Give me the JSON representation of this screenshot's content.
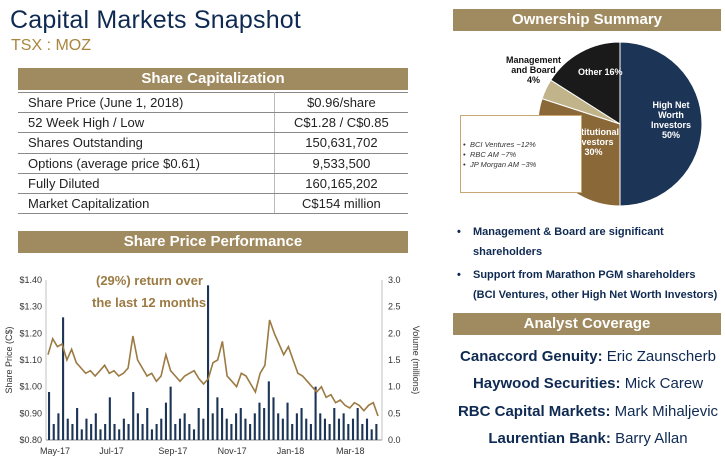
{
  "header": {
    "title": "Capital Markets Snapshot",
    "ticker": "TSX : MOZ"
  },
  "share_cap": {
    "heading": "Share Capitalization",
    "rows": [
      {
        "label": "Share Price (June 1, 2018)",
        "value": "$0.96/share"
      },
      {
        "label": "52 Week High / Low",
        "value": "C$1.28 / C$0.85"
      },
      {
        "label": "Shares Outstanding",
        "value": "150,631,702"
      },
      {
        "label": "Options (average price $0.61)",
        "value": "9,533,500"
      },
      {
        "label": "Fully Diluted",
        "value": "160,165,202"
      },
      {
        "label": "Market Capitalization",
        "value": "C$154 million"
      }
    ]
  },
  "performance": {
    "heading": "Share Price Performance",
    "note_line1": "(29%) return over",
    "note_line2": "the last 12 months"
  },
  "chart_data": {
    "type": "line",
    "xlabel": "",
    "ylabel": "Share Price (C$)",
    "y2label": "Volume (millions)",
    "x_ticks": [
      "May-17",
      "Jul-17",
      "Sep-17",
      "Nov-17",
      "Jan-18",
      "Mar-18"
    ],
    "y_ticks": [
      "$0.80",
      "$0.90",
      "$1.00",
      "$1.10",
      "$1.20",
      "$1.30",
      "$1.40"
    ],
    "y2_ticks": [
      "0.0",
      "0.5",
      "1.0",
      "1.5",
      "2.0",
      "2.5",
      "3.0"
    ],
    "ylim": [
      0.8,
      1.4
    ],
    "y2lim": [
      0,
      3.0
    ],
    "grid": false,
    "series": [
      {
        "values": [
          1.12,
          1.18,
          1.15,
          1.16,
          1.1,
          1.14,
          1.09,
          1.07,
          1.05,
          1.06,
          1.04,
          1.06,
          1.08,
          1.05,
          1.06,
          1.04,
          1.05,
          1.07,
          1.19,
          1.1,
          1.07,
          1.04,
          1.05,
          1.02,
          1.04,
          1.12,
          1.06,
          1.04,
          1.02,
          1.04,
          1.05,
          1.06,
          1.03,
          1.01,
          1.03,
          1.09,
          1.1,
          1.17,
          1.04,
          1.02,
          1.0,
          1.05,
          1.04,
          1.01,
          0.98,
          1.05,
          1.08,
          1.25,
          1.2,
          1.16,
          1.12,
          1.15,
          1.1,
          1.05,
          1.04,
          1.02,
          1.0,
          0.98,
          1.0,
          0.96,
          0.97,
          0.94,
          0.95,
          0.93,
          0.92,
          0.94,
          0.93,
          0.91,
          0.93,
          0.94,
          0.89
        ],
        "color": "#9b7a43"
      },
      {
        "values": [
          0.9,
          0.3,
          0.5,
          2.3,
          0.4,
          0.3,
          0.6,
          0.2,
          0.4,
          0.3,
          0.5,
          0.2,
          0.3,
          0.8,
          0.3,
          0.2,
          0.4,
          0.3,
          0.9,
          0.5,
          0.3,
          0.6,
          0.2,
          0.3,
          0.4,
          0.7,
          1.0,
          0.3,
          0.4,
          0.5,
          0.3,
          0.2,
          0.6,
          0.4,
          2.9,
          0.5,
          0.8,
          0.6,
          0.4,
          0.3,
          0.5,
          0.6,
          0.4,
          0.3,
          0.5,
          0.7,
          0.6,
          1.1,
          0.8,
          0.5,
          0.4,
          0.7,
          0.3,
          0.5,
          0.6,
          0.4,
          0.3,
          1.0,
          0.5,
          0.4,
          0.3,
          0.6,
          0.4,
          0.5,
          0.3,
          0.4,
          0.6,
          0.3,
          0.4,
          0.2,
          0.3
        ],
        "color": "#1c3557"
      }
    ]
  },
  "ownership": {
    "heading": "Ownership Summary",
    "chart_type": "pie",
    "slices": [
      {
        "label_lines": [
          "High Net",
          "Worth",
          "Investors",
          "50%"
        ],
        "value": 50,
        "color": "#1c3557",
        "text_color": "#ffffff"
      },
      {
        "label_lines": [
          "Institutional",
          "Investors",
          "30%"
        ],
        "value": 30,
        "color": "#8a6838",
        "text_color": "#ffffff"
      },
      {
        "label_lines": [
          "Management",
          "and Board",
          "4%"
        ],
        "value": 4,
        "color": "#c2b48a",
        "text_color": "#111111"
      },
      {
        "label_lines": [
          "Other 16%"
        ],
        "value": 16,
        "color": "#1a1a1a",
        "text_color": "#ffffff"
      }
    ],
    "legend_items": [
      "BCI Ventures ~12%",
      "RBC AM ~7%",
      "JP Morgan AM ~3%"
    ],
    "bullets": [
      "Management & Board are significant shareholders",
      "Support from Marathon PGM shareholders (BCI Ventures, other High Net Worth Investors)"
    ]
  },
  "analyst": {
    "heading": "Analyst Coverage",
    "items": [
      {
        "firm": "Canaccord Genuity:",
        "name": "Eric Zaunscherb"
      },
      {
        "firm": "Haywood Securities:",
        "name": "Mick Carew"
      },
      {
        "firm": "RBC Capital Markets:",
        "name": "Mark Mihaljevic"
      },
      {
        "firm": "Laurentian Bank:",
        "name": "Barry Allan"
      }
    ]
  }
}
